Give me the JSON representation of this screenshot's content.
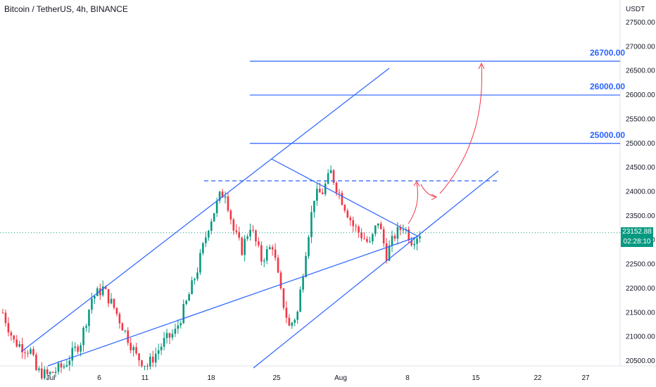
{
  "header": {
    "title": "Bitcoin / TetherUS, 4h, BINANCE",
    "currency": "USDT"
  },
  "last_price": {
    "price": "23152.88",
    "countdown": "02:28:10"
  },
  "colors": {
    "up": "#089981",
    "down": "#f23645",
    "drawing": "#2962ff",
    "arrow": "#f23645"
  },
  "chart_data": {
    "type": "candlestick",
    "x_ticks": [
      "Jul",
      "6",
      "11",
      "18",
      "25",
      "Aug",
      "8",
      "15",
      "22",
      "27"
    ],
    "y_ticks": [
      "27500.00",
      "27000.00",
      "26500.00",
      "26000.00",
      "25500.00",
      "25000.00",
      "24500.00",
      "24000.00",
      "23500.00",
      "23000.00",
      "22500.00",
      "22000.00",
      "21500.00",
      "21000.00",
      "20500.00"
    ],
    "ylim": [
      20500,
      27500
    ],
    "levels": [
      {
        "label": "26700.00",
        "value": 26700
      },
      {
        "label": "26000.00",
        "value": 26000
      },
      {
        "label": "25000.00",
        "value": 25000
      }
    ],
    "resistance_dashed": 24200,
    "current_price": 23152.88,
    "close_path": [
      {
        "t": 0,
        "p": 21500
      },
      {
        "t": 4,
        "p": 20900
      },
      {
        "t": 10,
        "p": 20700
      },
      {
        "t": 12,
        "p": 20300
      },
      {
        "t": 16,
        "p": 20200
      },
      {
        "t": 22,
        "p": 20400
      },
      {
        "t": 28,
        "p": 20900
      },
      {
        "t": 32,
        "p": 21800
      },
      {
        "t": 36,
        "p": 22000
      },
      {
        "t": 40,
        "p": 21600
      },
      {
        "t": 44,
        "p": 21100
      },
      {
        "t": 48,
        "p": 20600
      },
      {
        "t": 52,
        "p": 20400
      },
      {
        "t": 58,
        "p": 20900
      },
      {
        "t": 62,
        "p": 21100
      },
      {
        "t": 66,
        "p": 21700
      },
      {
        "t": 70,
        "p": 22400
      },
      {
        "t": 74,
        "p": 23300
      },
      {
        "t": 78,
        "p": 23900
      },
      {
        "t": 80,
        "p": 24000
      },
      {
        "t": 83,
        "p": 23200
      },
      {
        "t": 86,
        "p": 22800
      },
      {
        "t": 89,
        "p": 23300
      },
      {
        "t": 93,
        "p": 22600
      },
      {
        "t": 97,
        "p": 22900
      },
      {
        "t": 100,
        "p": 21900
      },
      {
        "t": 103,
        "p": 21200
      },
      {
        "t": 106,
        "p": 21500
      },
      {
        "t": 109,
        "p": 22800
      },
      {
        "t": 112,
        "p": 23900
      },
      {
        "t": 115,
        "p": 24000
      },
      {
        "t": 118,
        "p": 24400
      },
      {
        "t": 120,
        "p": 24100
      },
      {
        "t": 123,
        "p": 23700
      },
      {
        "t": 126,
        "p": 23300
      },
      {
        "t": 129,
        "p": 23100
      },
      {
        "t": 132,
        "p": 22900
      },
      {
        "t": 135,
        "p": 23400
      },
      {
        "t": 138,
        "p": 22700
      },
      {
        "t": 141,
        "p": 23100
      },
      {
        "t": 144,
        "p": 23300
      },
      {
        "t": 147,
        "p": 23000
      },
      {
        "t": 150,
        "p": 23152
      }
    ]
  }
}
